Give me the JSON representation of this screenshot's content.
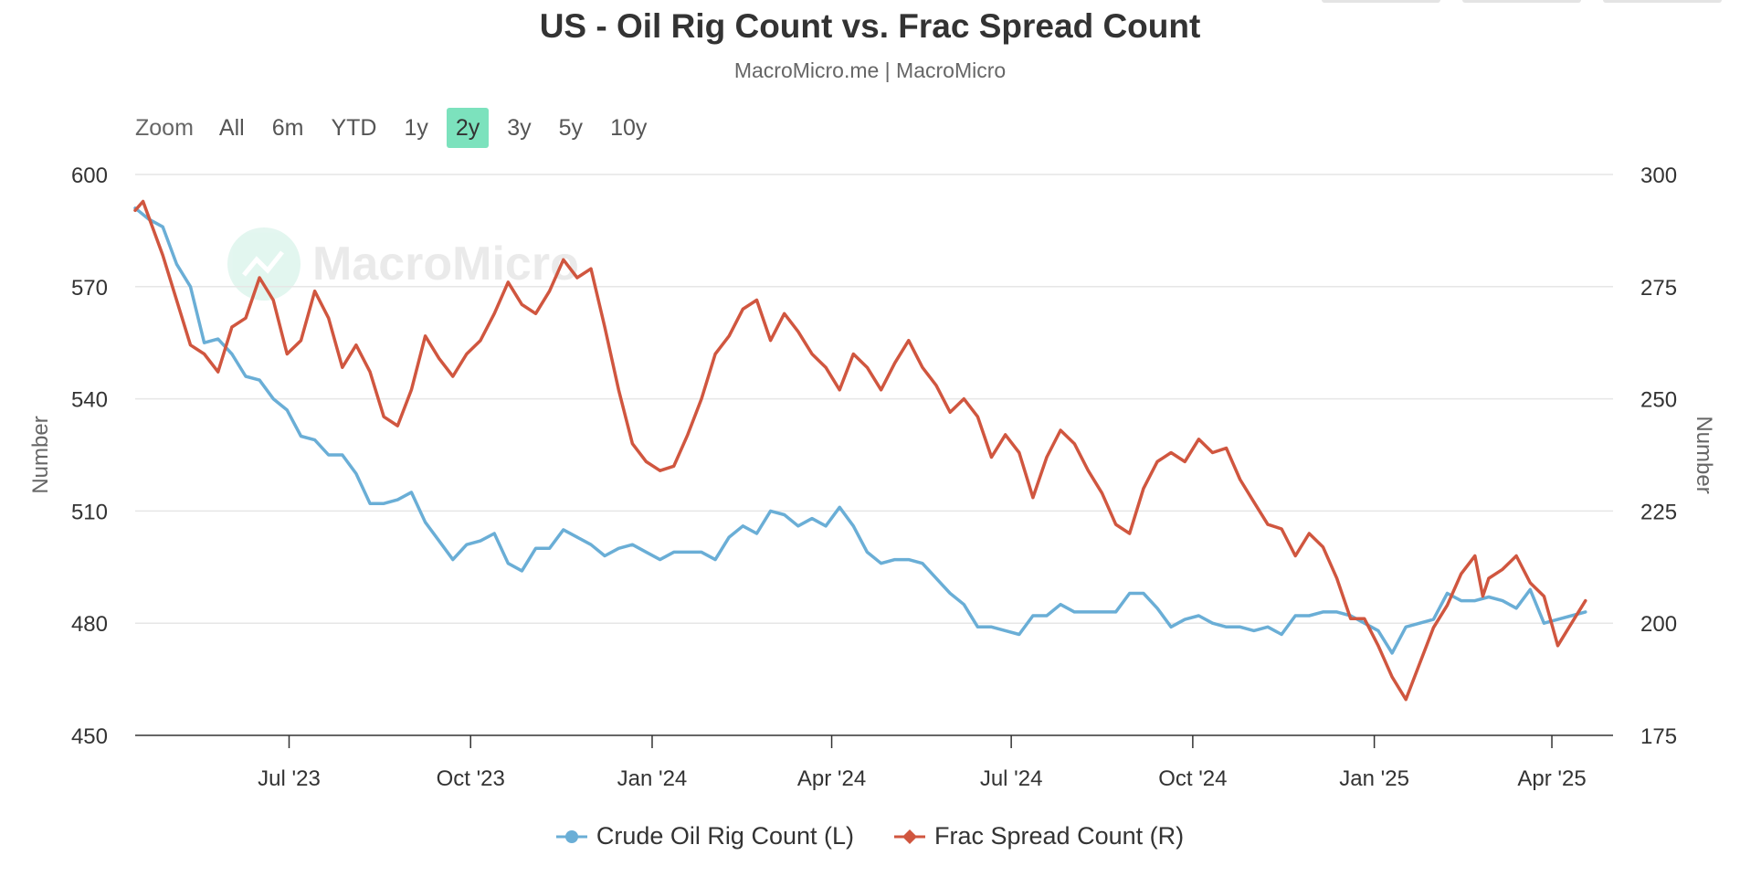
{
  "title": "US - Oil Rig Count vs. Frac Spread Count",
  "subtitle": "MacroMicro.me | MacroMicro",
  "watermark": "MacroMicro",
  "zoom": {
    "label": "Zoom",
    "buttons": [
      "All",
      "6m",
      "YTD",
      "1y",
      "2y",
      "3y",
      "5y",
      "10y"
    ],
    "active": "2y",
    "active_color": "#7ce2bd"
  },
  "chart_data": {
    "type": "line",
    "x_axis": {
      "start": "2023-04-14",
      "end": "2025-05-02",
      "tick_labels": [
        "Jul '23",
        "Oct '23",
        "Jan '24",
        "Apr '24",
        "Jul '24",
        "Oct '24",
        "Jan '25",
        "Apr '25"
      ],
      "tick_dates": [
        "2023-07-01",
        "2023-10-01",
        "2024-01-01",
        "2024-04-01",
        "2024-07-01",
        "2024-10-01",
        "2025-01-01",
        "2025-04-01"
      ]
    },
    "y_left": {
      "label": "Number",
      "min": 450,
      "max": 600,
      "ticks": [
        450,
        480,
        510,
        540,
        570,
        600
      ]
    },
    "y_right": {
      "label": "Number",
      "min": 175,
      "max": 300,
      "ticks": [
        175,
        200,
        225,
        250,
        275,
        300
      ]
    },
    "grid": true,
    "legend_position": "bottom",
    "series": [
      {
        "name": "Crude Oil Rig Count (L)",
        "axis": "left",
        "color": "#6aaed6",
        "marker": "circle",
        "points": [
          [
            "2023-04-14",
            591
          ],
          [
            "2023-04-21",
            588
          ],
          [
            "2023-04-28",
            586
          ],
          [
            "2023-05-05",
            576
          ],
          [
            "2023-05-12",
            570
          ],
          [
            "2023-05-19",
            555
          ],
          [
            "2023-05-26",
            556
          ],
          [
            "2023-06-02",
            552
          ],
          [
            "2023-06-09",
            546
          ],
          [
            "2023-06-16",
            545
          ],
          [
            "2023-06-23",
            540
          ],
          [
            "2023-06-30",
            537
          ],
          [
            "2023-07-07",
            530
          ],
          [
            "2023-07-14",
            529
          ],
          [
            "2023-07-21",
            525
          ],
          [
            "2023-07-28",
            525
          ],
          [
            "2023-08-04",
            520
          ],
          [
            "2023-08-11",
            512
          ],
          [
            "2023-08-18",
            512
          ],
          [
            "2023-08-25",
            513
          ],
          [
            "2023-09-01",
            515
          ],
          [
            "2023-09-08",
            507
          ],
          [
            "2023-09-15",
            502
          ],
          [
            "2023-09-22",
            497
          ],
          [
            "2023-09-29",
            501
          ],
          [
            "2023-10-06",
            502
          ],
          [
            "2023-10-13",
            504
          ],
          [
            "2023-10-20",
            496
          ],
          [
            "2023-10-27",
            494
          ],
          [
            "2023-11-03",
            500
          ],
          [
            "2023-11-10",
            500
          ],
          [
            "2023-11-17",
            505
          ],
          [
            "2023-11-24",
            503
          ],
          [
            "2023-12-01",
            501
          ],
          [
            "2023-12-08",
            498
          ],
          [
            "2023-12-15",
            500
          ],
          [
            "2023-12-22",
            501
          ],
          [
            "2023-12-29",
            499
          ],
          [
            "2024-01-05",
            497
          ],
          [
            "2024-01-12",
            499
          ],
          [
            "2024-01-19",
            499
          ],
          [
            "2024-01-26",
            499
          ],
          [
            "2024-02-02",
            497
          ],
          [
            "2024-02-09",
            503
          ],
          [
            "2024-02-16",
            506
          ],
          [
            "2024-02-23",
            504
          ],
          [
            "2024-03-01",
            510
          ],
          [
            "2024-03-08",
            509
          ],
          [
            "2024-03-15",
            506
          ],
          [
            "2024-03-22",
            508
          ],
          [
            "2024-03-29",
            506
          ],
          [
            "2024-04-05",
            511
          ],
          [
            "2024-04-12",
            506
          ],
          [
            "2024-04-19",
            499
          ],
          [
            "2024-04-26",
            496
          ],
          [
            "2024-05-03",
            497
          ],
          [
            "2024-05-10",
            497
          ],
          [
            "2024-05-17",
            496
          ],
          [
            "2024-05-24",
            492
          ],
          [
            "2024-05-31",
            488
          ],
          [
            "2024-06-07",
            485
          ],
          [
            "2024-06-14",
            479
          ],
          [
            "2024-06-21",
            479
          ],
          [
            "2024-06-28",
            478
          ],
          [
            "2024-07-05",
            477
          ],
          [
            "2024-07-12",
            482
          ],
          [
            "2024-07-19",
            482
          ],
          [
            "2024-07-26",
            485
          ],
          [
            "2024-08-02",
            483
          ],
          [
            "2024-08-09",
            483
          ],
          [
            "2024-08-16",
            483
          ],
          [
            "2024-08-23",
            483
          ],
          [
            "2024-08-30",
            488
          ],
          [
            "2024-09-06",
            488
          ],
          [
            "2024-09-13",
            484
          ],
          [
            "2024-09-20",
            479
          ],
          [
            "2024-09-27",
            481
          ],
          [
            "2024-10-04",
            482
          ],
          [
            "2024-10-11",
            480
          ],
          [
            "2024-10-18",
            479
          ],
          [
            "2024-10-25",
            479
          ],
          [
            "2024-11-01",
            478
          ],
          [
            "2024-11-08",
            479
          ],
          [
            "2024-11-15",
            477
          ],
          [
            "2024-11-22",
            482
          ],
          [
            "2024-11-29",
            482
          ],
          [
            "2024-12-06",
            483
          ],
          [
            "2024-12-13",
            483
          ],
          [
            "2024-12-20",
            482
          ],
          [
            "2024-12-27",
            480
          ],
          [
            "2025-01-03",
            478
          ],
          [
            "2025-01-10",
            472
          ],
          [
            "2025-01-17",
            479
          ],
          [
            "2025-01-24",
            480
          ],
          [
            "2025-01-31",
            481
          ],
          [
            "2025-02-07",
            488
          ],
          [
            "2025-02-14",
            486
          ],
          [
            "2025-02-21",
            486
          ],
          [
            "2025-02-28",
            487
          ],
          [
            "2025-03-07",
            486
          ],
          [
            "2025-03-14",
            484
          ],
          [
            "2025-03-21",
            489
          ],
          [
            "2025-03-28",
            480
          ],
          [
            "2025-04-04",
            481
          ],
          [
            "2025-04-11",
            482
          ],
          [
            "2025-04-18",
            483
          ]
        ]
      },
      {
        "name": "Frac Spread Count (R)",
        "axis": "right",
        "color": "#d0563f",
        "marker": "diamond",
        "points": [
          [
            "2023-04-14",
            292
          ],
          [
            "2023-04-18",
            294
          ],
          [
            "2023-04-28",
            282
          ],
          [
            "2023-05-12",
            262
          ],
          [
            "2023-05-19",
            260
          ],
          [
            "2023-05-26",
            256
          ],
          [
            "2023-06-02",
            266
          ],
          [
            "2023-06-09",
            268
          ],
          [
            "2023-06-16",
            277
          ],
          [
            "2023-06-23",
            272
          ],
          [
            "2023-06-30",
            260
          ],
          [
            "2023-07-07",
            263
          ],
          [
            "2023-07-14",
            274
          ],
          [
            "2023-07-21",
            268
          ],
          [
            "2023-07-28",
            257
          ],
          [
            "2023-08-04",
            262
          ],
          [
            "2023-08-11",
            256
          ],
          [
            "2023-08-18",
            246
          ],
          [
            "2023-08-25",
            244
          ],
          [
            "2023-09-01",
            252
          ],
          [
            "2023-09-08",
            264
          ],
          [
            "2023-09-15",
            259
          ],
          [
            "2023-09-22",
            255
          ],
          [
            "2023-09-29",
            260
          ],
          [
            "2023-10-06",
            263
          ],
          [
            "2023-10-13",
            269
          ],
          [
            "2023-10-20",
            276
          ],
          [
            "2023-10-27",
            271
          ],
          [
            "2023-11-03",
            269
          ],
          [
            "2023-11-10",
            274
          ],
          [
            "2023-11-17",
            281
          ],
          [
            "2023-11-24",
            277
          ],
          [
            "2023-12-01",
            279
          ],
          [
            "2023-12-08",
            266
          ],
          [
            "2023-12-15",
            252
          ],
          [
            "2023-12-22",
            240
          ],
          [
            "2023-12-29",
            236
          ],
          [
            "2024-01-05",
            234
          ],
          [
            "2024-01-12",
            235
          ],
          [
            "2024-01-19",
            242
          ],
          [
            "2024-01-26",
            250
          ],
          [
            "2024-02-02",
            260
          ],
          [
            "2024-02-09",
            264
          ],
          [
            "2024-02-16",
            270
          ],
          [
            "2024-02-23",
            272
          ],
          [
            "2024-03-01",
            263
          ],
          [
            "2024-03-08",
            269
          ],
          [
            "2024-03-15",
            265
          ],
          [
            "2024-03-22",
            260
          ],
          [
            "2024-03-29",
            257
          ],
          [
            "2024-04-05",
            252
          ],
          [
            "2024-04-12",
            260
          ],
          [
            "2024-04-19",
            257
          ],
          [
            "2024-04-26",
            252
          ],
          [
            "2024-05-03",
            258
          ],
          [
            "2024-05-10",
            263
          ],
          [
            "2024-05-17",
            257
          ],
          [
            "2024-05-24",
            253
          ],
          [
            "2024-05-31",
            247
          ],
          [
            "2024-06-07",
            250
          ],
          [
            "2024-06-14",
            246
          ],
          [
            "2024-06-21",
            237
          ],
          [
            "2024-06-28",
            242
          ],
          [
            "2024-07-05",
            238
          ],
          [
            "2024-07-12",
            228
          ],
          [
            "2024-07-19",
            237
          ],
          [
            "2024-07-26",
            243
          ],
          [
            "2024-08-02",
            240
          ],
          [
            "2024-08-09",
            234
          ],
          [
            "2024-08-16",
            229
          ],
          [
            "2024-08-23",
            222
          ],
          [
            "2024-08-30",
            220
          ],
          [
            "2024-09-06",
            230
          ],
          [
            "2024-09-13",
            236
          ],
          [
            "2024-09-20",
            238
          ],
          [
            "2024-09-27",
            236
          ],
          [
            "2024-10-04",
            241
          ],
          [
            "2024-10-11",
            238
          ],
          [
            "2024-10-18",
            239
          ],
          [
            "2024-10-25",
            232
          ],
          [
            "2024-11-01",
            227
          ],
          [
            "2024-11-08",
            222
          ],
          [
            "2024-11-15",
            221
          ],
          [
            "2024-11-22",
            215
          ],
          [
            "2024-11-29",
            220
          ],
          [
            "2024-12-06",
            217
          ],
          [
            "2024-12-13",
            210
          ],
          [
            "2024-12-20",
            201
          ],
          [
            "2024-12-27",
            201
          ],
          [
            "2025-01-03",
            195
          ],
          [
            "2025-01-10",
            188
          ],
          [
            "2025-01-17",
            183
          ],
          [
            "2025-01-24",
            191
          ],
          [
            "2025-01-31",
            199
          ],
          [
            "2025-02-07",
            204
          ],
          [
            "2025-02-14",
            211
          ],
          [
            "2025-02-21",
            215
          ],
          [
            "2025-02-25",
            206
          ],
          [
            "2025-02-28",
            210
          ],
          [
            "2025-03-07",
            212
          ],
          [
            "2025-03-14",
            215
          ],
          [
            "2025-03-21",
            209
          ],
          [
            "2025-03-28",
            206
          ],
          [
            "2025-04-04",
            195
          ],
          [
            "2025-04-11",
            200
          ],
          [
            "2025-04-18",
            205
          ]
        ]
      }
    ]
  }
}
